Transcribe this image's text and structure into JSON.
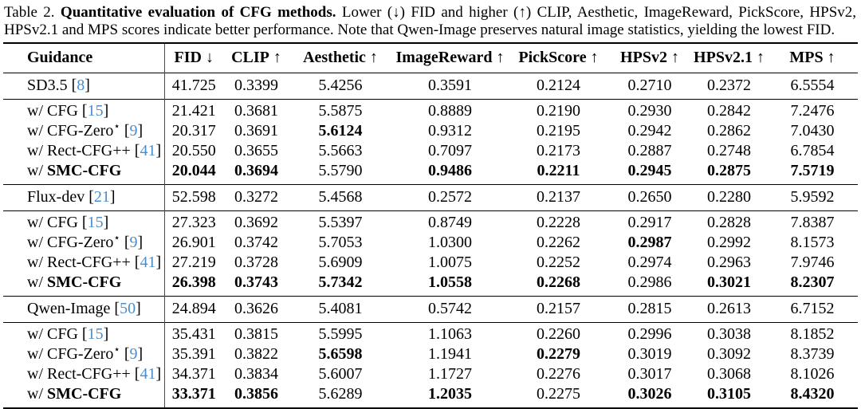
{
  "caption": {
    "label": "Table 2.",
    "title": "Quantitative evaluation of CFG methods.",
    "rest": "Lower (↓) FID and higher (↑) CLIP, Aesthetic, ImageReward, PickScore, HPSv2, HPSv2.1 and MPS scores indicate better performance. Note that Qwen-Image preserves natural image statistics, yielding the lowest FID."
  },
  "colors": {
    "citation_blue": "#4a8dc9",
    "rule_black": "#000000",
    "vertical_rule_gray": "#4a4a4a"
  },
  "chart_data": {
    "type": "table",
    "title": "Quantitative evaluation of CFG methods",
    "columns": [
      {
        "label": "Guidance",
        "arrow": ""
      },
      {
        "label": "FID",
        "arrow": "↓"
      },
      {
        "label": "CLIP",
        "arrow": "↑"
      },
      {
        "label": "Aesthetic",
        "arrow": "↑"
      },
      {
        "label": "ImageReward",
        "arrow": "↑"
      },
      {
        "label": "PickScore",
        "arrow": "↑"
      },
      {
        "label": "HPSv2",
        "arrow": "↑"
      },
      {
        "label": "HPSv2.1",
        "arrow": "↑"
      },
      {
        "label": "MPS",
        "arrow": "↑"
      }
    ],
    "groups": [
      {
        "kind": "model",
        "rows": [
          {
            "prefix": "",
            "name": "SD3.5",
            "name_bold": false,
            "star": false,
            "cite": "8",
            "values": [
              "41.725",
              "0.3399",
              "5.4256",
              "0.3591",
              "0.2124",
              "0.2710",
              "0.2372",
              "6.5554"
            ],
            "bold": [
              false,
              false,
              false,
              false,
              false,
              false,
              false,
              false
            ]
          }
        ]
      },
      {
        "kind": "variants",
        "rows": [
          {
            "prefix": "w/ ",
            "name": "CFG",
            "name_bold": false,
            "star": false,
            "cite": "15",
            "values": [
              "21.421",
              "0.3681",
              "5.5875",
              "0.8889",
              "0.2190",
              "0.2930",
              "0.2842",
              "7.2476"
            ],
            "bold": [
              false,
              false,
              false,
              false,
              false,
              false,
              false,
              false
            ]
          },
          {
            "prefix": "w/ ",
            "name": "CFG-Zero",
            "name_bold": false,
            "star": true,
            "cite": "9",
            "values": [
              "20.317",
              "0.3691",
              "5.6124",
              "0.9312",
              "0.2195",
              "0.2942",
              "0.2862",
              "7.0430"
            ],
            "bold": [
              false,
              false,
              true,
              false,
              false,
              false,
              false,
              false
            ]
          },
          {
            "prefix": "w/ ",
            "name": "Rect-CFG++",
            "name_bold": false,
            "star": false,
            "cite": "41",
            "values": [
              "20.550",
              "0.3655",
              "5.5663",
              "0.7097",
              "0.2173",
              "0.2887",
              "0.2748",
              "6.7854"
            ],
            "bold": [
              false,
              false,
              false,
              false,
              false,
              false,
              false,
              false
            ]
          },
          {
            "prefix": "w/ ",
            "name": "SMC-CFG",
            "name_bold": true,
            "star": false,
            "cite": null,
            "values": [
              "20.044",
              "0.3694",
              "5.5790",
              "0.9486",
              "0.2211",
              "0.2945",
              "0.2875",
              "7.5719"
            ],
            "bold": [
              true,
              true,
              false,
              true,
              true,
              true,
              true,
              true
            ]
          }
        ]
      },
      {
        "kind": "model",
        "rows": [
          {
            "prefix": "",
            "name": "Flux-dev",
            "name_bold": false,
            "star": false,
            "cite": "21",
            "values": [
              "52.598",
              "0.3272",
              "5.4568",
              "0.2572",
              "0.2137",
              "0.2650",
              "0.2280",
              "5.9592"
            ],
            "bold": [
              false,
              false,
              false,
              false,
              false,
              false,
              false,
              false
            ]
          }
        ]
      },
      {
        "kind": "variants",
        "rows": [
          {
            "prefix": "w/ ",
            "name": "CFG",
            "name_bold": false,
            "star": false,
            "cite": "15",
            "values": [
              "27.323",
              "0.3692",
              "5.5397",
              "0.8749",
              "0.2228",
              "0.2917",
              "0.2828",
              "7.8387"
            ],
            "bold": [
              false,
              false,
              false,
              false,
              false,
              false,
              false,
              false
            ]
          },
          {
            "prefix": "w/ ",
            "name": "CFG-Zero",
            "name_bold": false,
            "star": true,
            "cite": "9",
            "values": [
              "26.901",
              "0.3742",
              "5.7053",
              "1.0300",
              "0.2262",
              "0.2987",
              "0.2992",
              "8.1573"
            ],
            "bold": [
              false,
              false,
              false,
              false,
              false,
              true,
              false,
              false
            ]
          },
          {
            "prefix": "w/ ",
            "name": "Rect-CFG++",
            "name_bold": false,
            "star": false,
            "cite": "41",
            "values": [
              "27.219",
              "0.3728",
              "5.6909",
              "1.0075",
              "0.2252",
              "0.2974",
              "0.2963",
              "7.9746"
            ],
            "bold": [
              false,
              false,
              false,
              false,
              false,
              false,
              false,
              false
            ]
          },
          {
            "prefix": "w/ ",
            "name": "SMC-CFG",
            "name_bold": true,
            "star": false,
            "cite": null,
            "values": [
              "26.398",
              "0.3743",
              "5.7342",
              "1.0558",
              "0.2268",
              "0.2986",
              "0.3021",
              "8.2307"
            ],
            "bold": [
              true,
              true,
              true,
              true,
              true,
              false,
              true,
              true
            ]
          }
        ]
      },
      {
        "kind": "model",
        "rows": [
          {
            "prefix": "",
            "name": "Qwen-Image",
            "name_bold": false,
            "star": false,
            "cite": "50",
            "values": [
              "24.894",
              "0.3626",
              "5.4081",
              "0.5742",
              "0.2157",
              "0.2815",
              "0.2613",
              "6.7152"
            ],
            "bold": [
              false,
              false,
              false,
              false,
              false,
              false,
              false,
              false
            ]
          }
        ]
      },
      {
        "kind": "variants",
        "rows": [
          {
            "prefix": "w/ ",
            "name": "CFG",
            "name_bold": false,
            "star": false,
            "cite": "15",
            "values": [
              "35.431",
              "0.3815",
              "5.5995",
              "1.1063",
              "0.2260",
              "0.2996",
              "0.3038",
              "8.1852"
            ],
            "bold": [
              false,
              false,
              false,
              false,
              false,
              false,
              false,
              false
            ]
          },
          {
            "prefix": "w/ ",
            "name": "CFG-Zero",
            "name_bold": false,
            "star": true,
            "cite": "9",
            "values": [
              "35.391",
              "0.3822",
              "5.6598",
              "1.1941",
              "0.2279",
              "0.3019",
              "0.3092",
              "8.3739"
            ],
            "bold": [
              false,
              false,
              true,
              false,
              true,
              false,
              false,
              false
            ]
          },
          {
            "prefix": "w/ ",
            "name": "Rect-CFG++",
            "name_bold": false,
            "star": false,
            "cite": "41",
            "values": [
              "34.371",
              "0.3834",
              "5.6007",
              "1.1727",
              "0.2276",
              "0.3017",
              "0.3068",
              "8.1026"
            ],
            "bold": [
              false,
              false,
              false,
              false,
              false,
              false,
              false,
              false
            ]
          },
          {
            "prefix": "w/ ",
            "name": "SMC-CFG",
            "name_bold": true,
            "star": false,
            "cite": null,
            "values": [
              "33.371",
              "0.3856",
              "5.6289",
              "1.2035",
              "0.2275",
              "0.3026",
              "0.3105",
              "8.4320"
            ],
            "bold": [
              true,
              true,
              false,
              true,
              false,
              true,
              true,
              true
            ]
          }
        ]
      }
    ]
  }
}
